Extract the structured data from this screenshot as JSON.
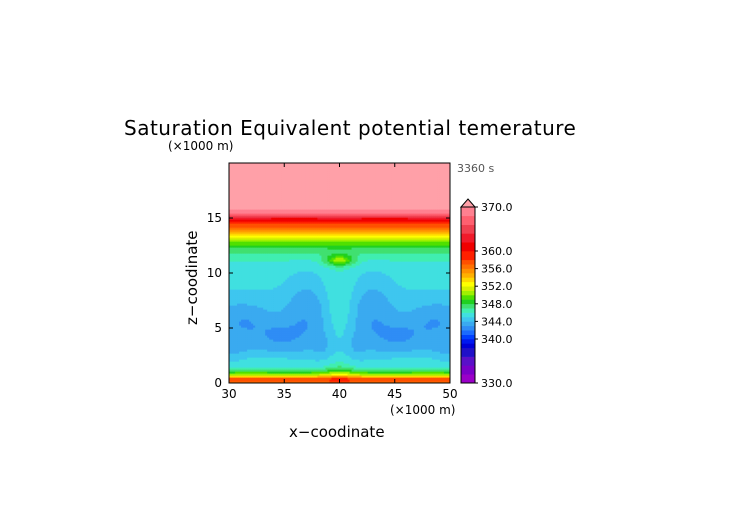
{
  "chart_data": {
    "type": "heatmap",
    "title": "Saturation Equivalent potential temerature",
    "time_label": "3360 s",
    "xlabel": "x−coodinate",
    "ylabel": "z−coodinate",
    "x_unit": "(×1000 m)",
    "y_unit": "(×1000 m)",
    "xlim": [
      30,
      50
    ],
    "ylim": [
      0,
      20
    ],
    "x_ticks": [
      "30",
      "35",
      "40",
      "45",
      "50"
    ],
    "y_ticks": [
      "0",
      "5",
      "10",
      "15"
    ],
    "x_tick_values": [
      30,
      35,
      40,
      45,
      50
    ],
    "y_tick_values": [
      0,
      5,
      10,
      15
    ],
    "colorbar": {
      "min": 330,
      "max": 370,
      "labels": [
        "370.0",
        "360.0",
        "356.0",
        "352.0",
        "348.0",
        "344.0",
        "340.0",
        "330.0"
      ],
      "label_values": [
        370,
        360,
        356,
        352,
        348,
        344,
        340,
        330
      ],
      "levels": [
        {
          "lo": 330,
          "hi": 332,
          "color": "#9a00c8"
        },
        {
          "lo": 332,
          "hi": 334,
          "color": "#7a00c8"
        },
        {
          "lo": 334,
          "hi": 336,
          "color": "#5a10c8"
        },
        {
          "lo": 336,
          "hi": 338,
          "color": "#2010c8"
        },
        {
          "lo": 338,
          "hi": 339,
          "color": "#0000d8"
        },
        {
          "lo": 339,
          "hi": 340,
          "color": "#0018f0"
        },
        {
          "lo": 340,
          "hi": 341,
          "color": "#0040ff"
        },
        {
          "lo": 341,
          "hi": 342,
          "color": "#1a6bff"
        },
        {
          "lo": 342,
          "hi": 343,
          "color": "#2f8df5"
        },
        {
          "lo": 343,
          "hi": 344,
          "color": "#3aaaf0"
        },
        {
          "lo": 344,
          "hi": 345,
          "color": "#3ec6ef"
        },
        {
          "lo": 345,
          "hi": 346,
          "color": "#40e0e0"
        },
        {
          "lo": 346,
          "hi": 347,
          "color": "#40eeb0"
        },
        {
          "lo": 347,
          "hi": 348,
          "color": "#40e070"
        },
        {
          "lo": 348,
          "hi": 349,
          "color": "#20d020"
        },
        {
          "lo": 349,
          "hi": 350,
          "color": "#50e000"
        },
        {
          "lo": 350,
          "hi": 351,
          "color": "#a0f000"
        },
        {
          "lo": 351,
          "hi": 352,
          "color": "#d8f000"
        },
        {
          "lo": 352,
          "hi": 353,
          "color": "#ffff00"
        },
        {
          "lo": 353,
          "hi": 354,
          "color": "#ffd800"
        },
        {
          "lo": 354,
          "hi": 355,
          "color": "#ffb000"
        },
        {
          "lo": 355,
          "hi": 356,
          "color": "#ff9000"
        },
        {
          "lo": 356,
          "hi": 357,
          "color": "#ff7000"
        },
        {
          "lo": 357,
          "hi": 358,
          "color": "#ff5000"
        },
        {
          "lo": 358,
          "hi": 360,
          "color": "#ff2000"
        },
        {
          "lo": 360,
          "hi": 362,
          "color": "#f00000"
        },
        {
          "lo": 362,
          "hi": 364,
          "color": "#f01a2a"
        },
        {
          "lo": 364,
          "hi": 366,
          "color": "#f04050"
        },
        {
          "lo": 366,
          "hi": 368,
          "color": "#ff6070"
        },
        {
          "lo": 368,
          "hi": 370,
          "color": "#ff8090"
        }
      ],
      "overflow_color": "#ffa0a8"
    },
    "field": {
      "background_profile_z_km": [
        0,
        0.4,
        0.8,
        1.2,
        1.6,
        2.0,
        3.0,
        4.0,
        5.0,
        6.0,
        7.0,
        8.0,
        9.0,
        10.0,
        11.0,
        11.5,
        12.0,
        12.5,
        13.0,
        13.5,
        14.0,
        14.5,
        15.0,
        15.5,
        16.0,
        20.0
      ],
      "background_profile_theta": [
        356,
        358,
        351,
        347,
        345.6,
        345.2,
        344.5,
        344.2,
        344.2,
        344.4,
        344.6,
        344.9,
        345.2,
        345.4,
        345.9,
        346.5,
        347.3,
        348.5,
        350.5,
        353,
        356,
        358,
        362,
        368,
        371,
        372
      ]
    },
    "grid": false
  }
}
